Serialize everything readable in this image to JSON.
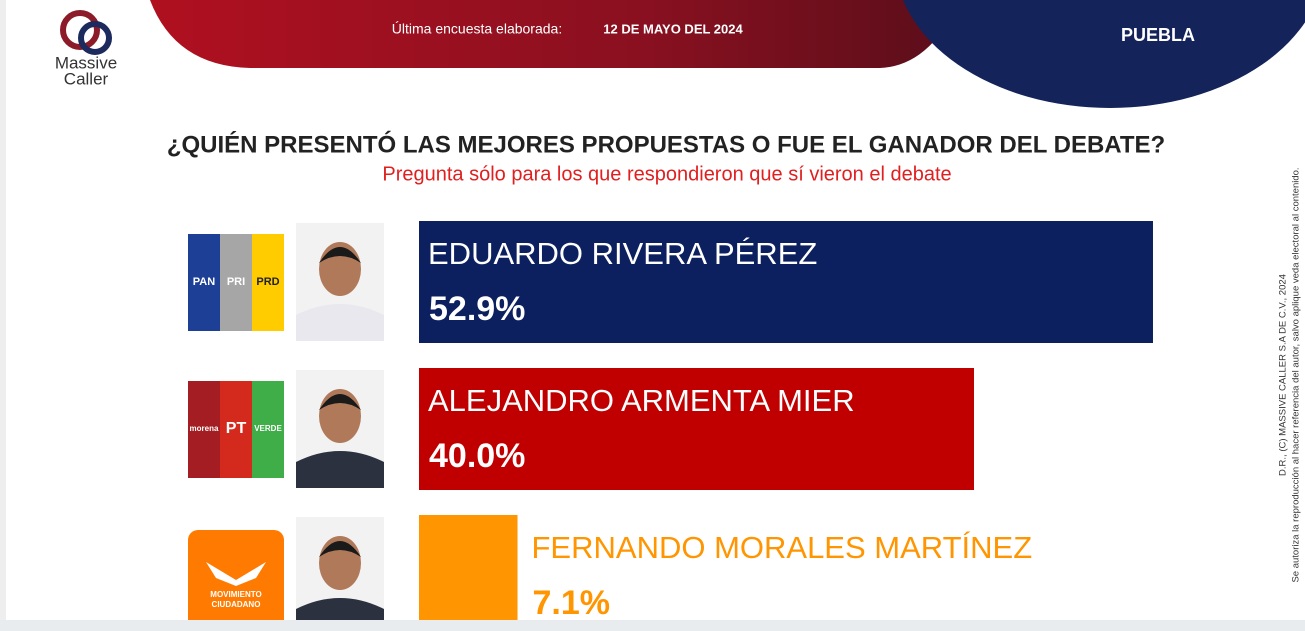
{
  "header": {
    "brand": [
      "Massive",
      "Caller"
    ],
    "survey_label": "Última encuesta elaborada:",
    "survey_date": "12 DE MAYO DEL 2024",
    "region": "PUEBLA"
  },
  "side_note": [
    "D.R., (C) MASSIVE CALLER S.A DE C.V., 2024",
    "Se autoriza la reproducción al hacer referencia del autor, salvo aplique veda electoral al contenido."
  ],
  "chart_data": {
    "type": "bar",
    "orientation": "horizontal",
    "title": "¿QUIÉN PRESENTÓ LAS MEJORES PROPUESTAS O FUE EL GANADOR DEL DEBATE?",
    "subtitle": "Pregunta sólo para los que respondieron que sí vieron el debate",
    "categories": [
      "EDUARDO RIVERA PÉREZ",
      "ALEJANDRO ARMENTA MIER",
      "FERNANDO MORALES MARTÍNEZ"
    ],
    "values": [
      52.9,
      40.0,
      7.1
    ],
    "value_labels": [
      "52.9%",
      "40.0%",
      "7.1%"
    ],
    "colors": [
      "#0c1f5e",
      "#c00000",
      "#ff9500"
    ],
    "logos": [
      [
        "PAN",
        "PRI",
        "PRD"
      ],
      [
        "morena",
        "PT",
        "VERDE"
      ],
      [
        "MOVIMIENTO",
        "CIUDADANO"
      ]
    ]
  }
}
